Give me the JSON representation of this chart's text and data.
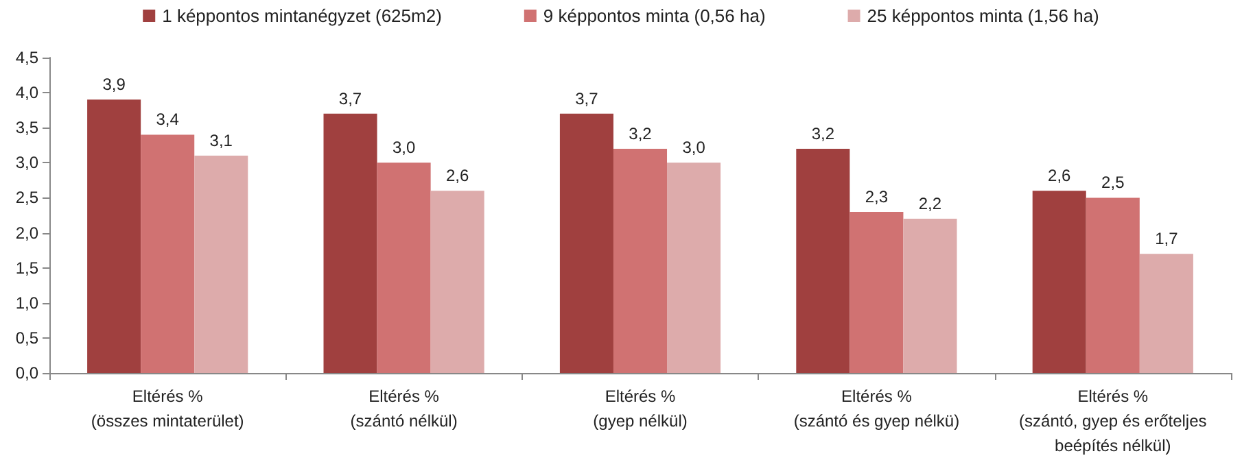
{
  "chart_data": {
    "type": "bar",
    "categories": [
      "Eltérés %\n(összes mintaterület)",
      "Eltérés %\n(szántó nélkül)",
      "Eltérés %\n(gyep nélkül)",
      "Eltérés %\n(szántó és gyep nélkü)",
      "Eltérés %\n(szántó, gyep és erőteljes\nbeépítés nélkül)"
    ],
    "series": [
      {
        "name": "1 képpontos mintanégyzet (625m2)",
        "color": "#a0403f",
        "values": [
          3.9,
          3.7,
          3.7,
          3.2,
          2.6
        ],
        "value_labels": [
          "3,9",
          "3,7",
          "3,7",
          "3,2",
          "2,6"
        ]
      },
      {
        "name": "9 képpontos minta (0,56 ha)",
        "color": "#d07272",
        "values": [
          3.4,
          3.0,
          3.2,
          2.3,
          2.5
        ],
        "value_labels": [
          "3,4",
          "3,0",
          "3,2",
          "2,3",
          "2,5"
        ]
      },
      {
        "name": "25 képpontos minta (1,56 ha)",
        "color": "#ddabab",
        "values": [
          3.1,
          2.6,
          3.0,
          2.2,
          1.7
        ],
        "value_labels": [
          "3,1",
          "2,6",
          "3,0",
          "2,2",
          "1,7"
        ]
      }
    ],
    "ylim": [
      0,
      4.5
    ],
    "yticks": [
      {
        "value": 0,
        "label": "0,0"
      },
      {
        "value": 0.5,
        "label": "0,5"
      },
      {
        "value": 1,
        "label": "1,0"
      },
      {
        "value": 1.5,
        "label": "1,5"
      },
      {
        "value": 2,
        "label": "2,0"
      },
      {
        "value": 2.5,
        "label": "2,5"
      },
      {
        "value": 3,
        "label": "3,0"
      },
      {
        "value": 3.5,
        "label": "3,5"
      },
      {
        "value": 4,
        "label": "4,0"
      },
      {
        "value": 4.5,
        "label": "4,5"
      }
    ],
    "legend": "top",
    "grid": false
  }
}
